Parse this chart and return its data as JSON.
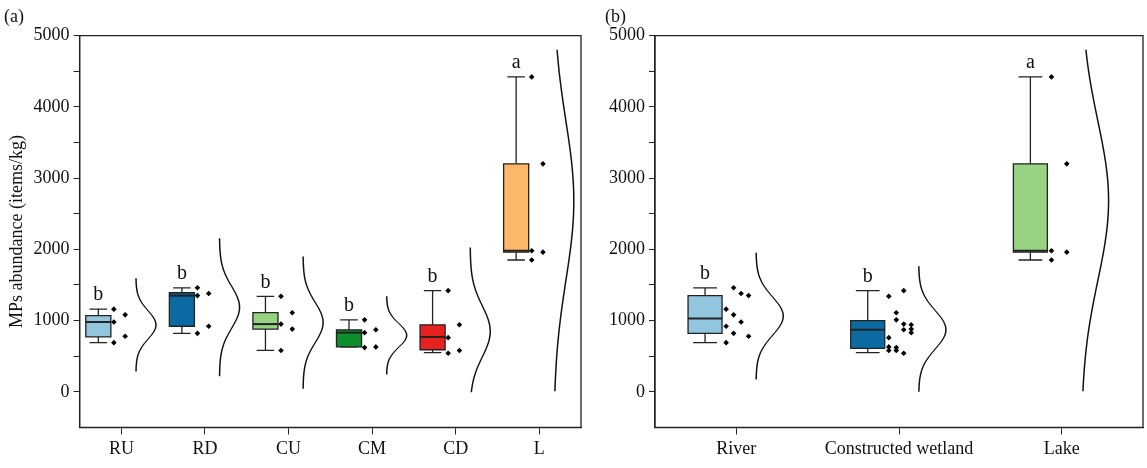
{
  "chart_data": [
    {
      "type": "box",
      "title": "(a)",
      "ylabel": "MPs abundance (items/kg)",
      "categories": [
        "RU",
        "RD",
        "CU",
        "CM",
        "CD",
        "L"
      ],
      "colors": [
        "#92c5de",
        "#0a6aa1",
        "#98d283",
        "#0e8f2e",
        "#e8201f",
        "#fdb768"
      ],
      "boxes": [
        {
          "low": 690,
          "q1": 770,
          "median": 980,
          "q3": 1070,
          "high": 1160
        },
        {
          "low": 820,
          "q1": 920,
          "median": 1350,
          "q3": 1390,
          "high": 1460
        },
        {
          "low": 580,
          "q1": 880,
          "median": 950,
          "q3": 1110,
          "high": 1340
        },
        {
          "low": 630,
          "q1": 630,
          "median": 830,
          "q3": 870,
          "high": 1010
        },
        {
          "low": 550,
          "q1": 590,
          "median": 770,
          "q3": 940,
          "high": 1420
        },
        {
          "low": 1850,
          "q1": 1960,
          "median": 1980,
          "q3": 3200,
          "high": 4420
        }
      ],
      "series": [
        {
          "type": "scatter",
          "color": "#000000",
          "x": [
            "RU",
            "RU",
            "RU",
            "RU",
            "RU",
            "RD",
            "RD",
            "RD",
            "RD",
            "RD",
            "CU",
            "CU",
            "CU",
            "CU",
            "CU",
            "CM",
            "CM",
            "CM",
            "CM",
            "CM",
            "CD",
            "CD",
            "CD",
            "CD",
            "CD",
            "L",
            "L",
            "L",
            "L",
            "L"
          ],
          "values": [
            1160,
            1080,
            980,
            780,
            690,
            1460,
            1380,
            1350,
            920,
            820,
            1340,
            1110,
            950,
            880,
            580,
            1010,
            870,
            830,
            630,
            620,
            1420,
            940,
            760,
            580,
            540,
            4420,
            3200,
            1980,
            1960,
            1850
          ]
        }
      ],
      "marker": "diamond",
      "ylim": [
        -500,
        5000
      ],
      "yticks": [
        0,
        {
          "value": 500,
          "label": null
        },
        1000,
        {
          "value": 1500,
          "label": null
        },
        2000,
        {
          "value": 2500,
          "label": null
        },
        3000,
        {
          "value": 3500,
          "label": null
        },
        4000,
        {
          "value": 4500,
          "label": null
        },
        5000
      ],
      "annotations": [
        "b",
        "b",
        "b",
        "b",
        "b",
        "a"
      ]
    },
    {
      "type": "box",
      "title": "(b)",
      "categories": [
        "River",
        "Constructed wetland",
        "Lake"
      ],
      "colors": [
        "#92c5de",
        "#0a6aa1",
        "#98d283"
      ],
      "boxes": [
        {
          "low": 690,
          "q1": 820,
          "median": 1030,
          "q3": 1350,
          "high": 1460
        },
        {
          "low": 550,
          "q1": 610,
          "median": 870,
          "q3": 1000,
          "high": 1420
        },
        {
          "low": 1850,
          "q1": 1960,
          "median": 1980,
          "q3": 3200,
          "high": 4420
        }
      ],
      "series": [
        {
          "type": "scatter",
          "color": "#000000",
          "x": [
            "River",
            "River",
            "River",
            "River",
            "River",
            "River",
            "River",
            "River",
            "River",
            "River",
            "Constructed wetland",
            "Constructed wetland",
            "Constructed wetland",
            "Constructed wetland",
            "Constructed wetland",
            "Constructed wetland",
            "Constructed wetland",
            "Constructed wetland",
            "Constructed wetland",
            "Constructed wetland",
            "Constructed wetland",
            "Constructed wetland",
            "Constructed wetland",
            "Constructed wetland",
            "Constructed wetland",
            "Lake",
            "Lake",
            "Lake",
            "Lake",
            "Lake"
          ],
          "values": [
            1160,
            1080,
            980,
            780,
            690,
            1460,
            1380,
            1350,
            920,
            820,
            1340,
            1110,
            950,
            880,
            580,
            1010,
            870,
            830,
            630,
            620,
            1420,
            940,
            760,
            580,
            540,
            4420,
            3200,
            1980,
            1960,
            1850
          ]
        }
      ],
      "marker": "diamond",
      "ylim": [
        -500,
        5000
      ],
      "yticks": [
        0,
        {
          "value": 500,
          "label": null
        },
        1000,
        {
          "value": 1500,
          "label": null
        },
        2000,
        {
          "value": 2500,
          "label": null
        },
        3000,
        {
          "value": 3500,
          "label": null
        },
        4000,
        {
          "value": 4500,
          "label": null
        },
        5000
      ],
      "annotations": [
        "b",
        "b",
        "a"
      ]
    }
  ]
}
